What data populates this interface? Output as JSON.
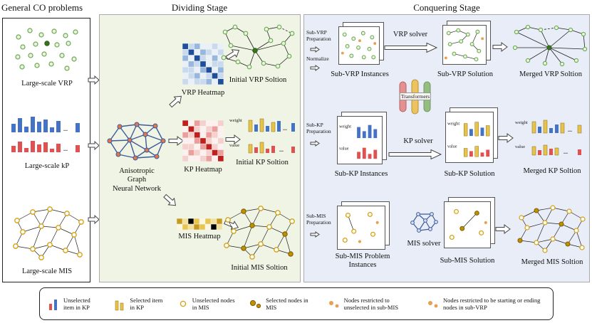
{
  "titles": {
    "co": "General CO problems",
    "dividing": "Dividing Stage",
    "conquering": "Conquering Stage"
  },
  "co_panel": {
    "vrp_label": "Large-scale VRP",
    "kp_label": "Large-scale kP",
    "mis_label": "Large-scale MIS"
  },
  "dividing": {
    "gnn_lines": [
      "Anisotropic",
      "Graph",
      "Neural Network"
    ],
    "vrp_heatmap": "VRP Heatmap",
    "kp_heatmap": "KP Heatmap",
    "mis_heatmap": "MIS Heatmap",
    "initial_vrp": "Initial VRP Soltion",
    "initial_kp": "Initial KP Soltion",
    "initial_mis": "Initial MIS Soltion"
  },
  "conquering": {
    "vrp": {
      "prep": "Sub-VRP Preparation",
      "normalize": "Normalize",
      "instances": "Sub-VRP Instances",
      "solver": "VRP solver",
      "solution": "Sub-VRP Solution",
      "merged": "Merged VRP Soltion"
    },
    "transformers": "Transformers",
    "kp": {
      "prep": "Sub-KP Preparation",
      "instances": "Sub-KP Instances",
      "solver": "KP solver",
      "solution": "Sub-KP Solution",
      "merged": "Merged KP Soltion"
    },
    "mis": {
      "prep": "Sub-MIS Preparation",
      "instances": "Sub-MIS Problem Instances",
      "solver": "MIS solver",
      "solution": "Sub-MIS Solution",
      "merged": "Merged MIS Soltion"
    }
  },
  "mini": {
    "weight": "weight",
    "value": "value",
    "ellipsis": "..."
  },
  "legend": [
    {
      "label": "Unselected item in KP"
    },
    {
      "label": "Selected item in KP"
    },
    {
      "label": "Unselected nodes in MIS"
    },
    {
      "label": "Selected nodes in MIS"
    },
    {
      "label": "Nodes restricted to unselected in sub-MIS"
    },
    {
      "label": "Nodes restricted to be starting or ending nodes in sub-VRP"
    }
  ],
  "colors": {
    "vrp_node": "#6aa84f",
    "vrp_depot": "#38761d",
    "kp_weight_bar": "#4472c4",
    "kp_value_bar": "#e05252",
    "selected_bar": "#e8c34a",
    "mis_node": "#d4a017",
    "mis_selected_node": "#bf9000",
    "restricted_node": "#e8a050",
    "gnn_edge": "#3d5a99",
    "gnn_node": "#e0784f",
    "dividing_bg": "#f0f4e4",
    "conquering_bg": "#e8edf7"
  },
  "graphics": {
    "heatmaps": {
      "vrp": {
        "palette": [
          "#eaf0fa",
          "#c9d9f0",
          "#97b6e0",
          "#5585c8",
          "#1f4e9c"
        ],
        "rows": [
          "4120010",
          "1402101",
          "2041020",
          "0214011",
          "1102402",
          "0120141",
          "1011204"
        ]
      },
      "kp": {
        "palette": [
          "#fdf0f0",
          "#f6cfcf",
          "#ec9d9d",
          "#dd5c5c",
          "#c01f1f"
        ],
        "rows": [
          "4021001",
          "0410120",
          "2140210",
          "0024101",
          "1102410",
          "0210142",
          "1001204"
        ]
      },
      "mis": {
        "palette": [
          "#fdf7e0",
          "#f4e09a",
          "#e9c44f",
          "#c79a1e"
        ],
        "rows": [
          "31420213",
          "02132041"
        ]
      }
    }
  }
}
